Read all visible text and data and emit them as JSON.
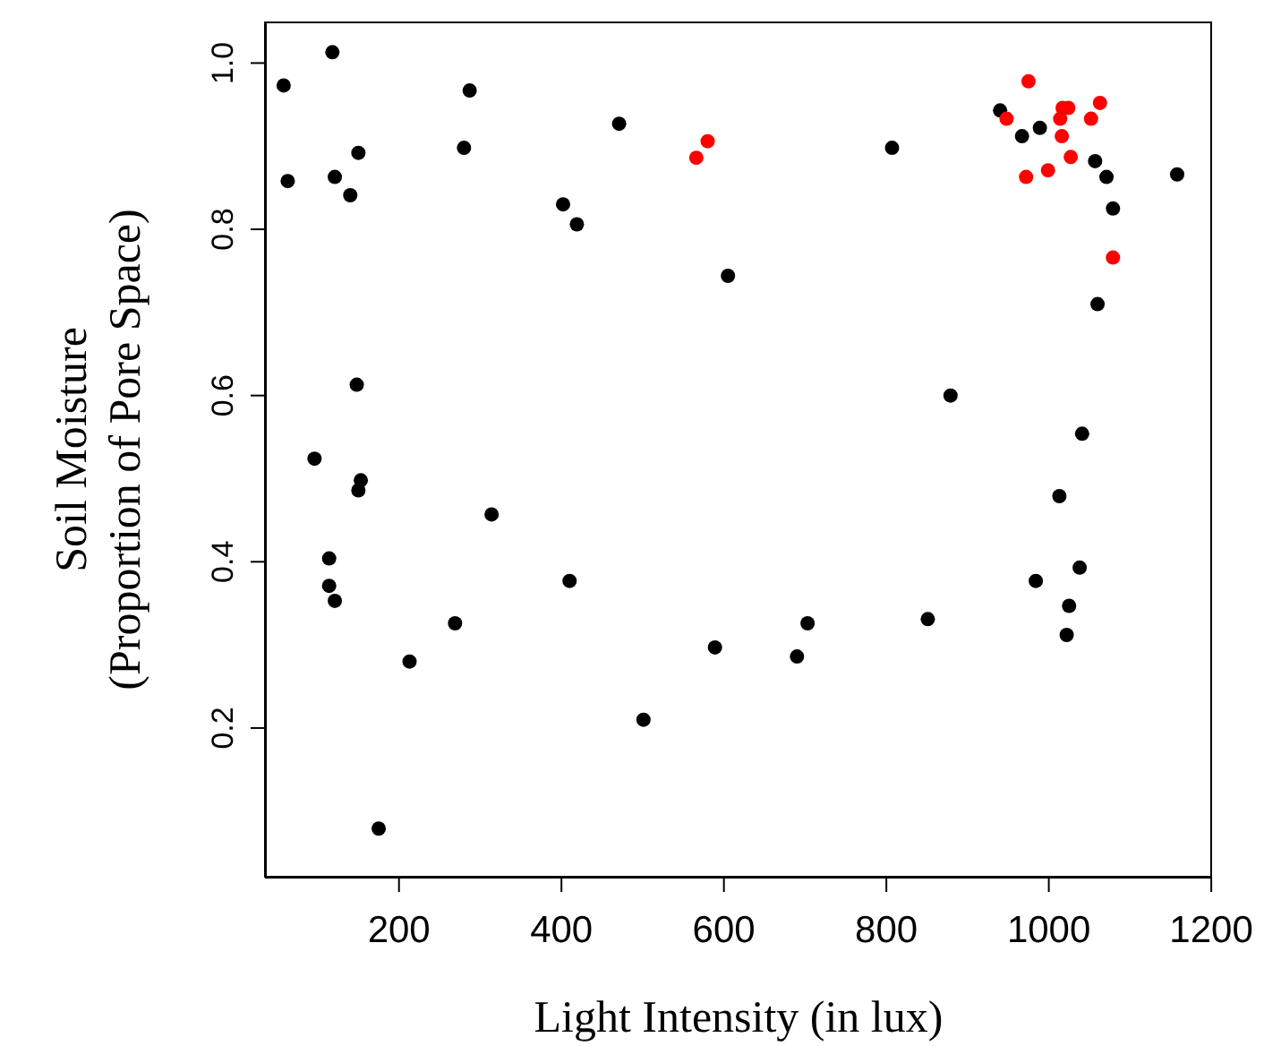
{
  "chart_data": {
    "type": "scatter",
    "xlabel": "Light Intensity (in lux)",
    "ylabel": "Soil Moisture\n(Proportion of Pore Space)",
    "xlim": [
      35,
      1201
    ],
    "ylim": [
      0.02,
      1.05
    ],
    "xticks": [
      200,
      400,
      600,
      800,
      1000,
      1200
    ],
    "yticks": [
      0.2,
      0.4,
      0.6,
      0.8,
      {
        "value": 1.0,
        "label": "1.0"
      }
    ],
    "marker": "circle",
    "grid": false,
    "legend": false,
    "series": [
      {
        "color": "#000000",
        "x": [
          118,
          58,
          287,
          471,
          150,
          280,
          63,
          121,
          140,
          402,
          419,
          605,
          148,
          96,
          153,
          150,
          314,
          114,
          410,
          114,
          121,
          269,
          213,
          589,
          501,
          175,
          940,
          967,
          989,
          1057,
          1071,
          1158,
          1079,
          807,
          1060,
          879,
          1041,
          1013,
          1038,
          984,
          1025,
          1022,
          851,
          703,
          690
        ],
        "values": [
          1.013,
          0.973,
          0.967,
          0.927,
          0.892,
          0.898,
          0.858,
          0.863,
          0.841,
          0.83,
          0.806,
          0.744,
          0.613,
          0.524,
          0.498,
          0.486,
          0.457,
          0.404,
          0.377,
          0.371,
          0.353,
          0.326,
          0.28,
          0.297,
          0.21,
          0.079,
          0.943,
          0.912,
          0.922,
          0.882,
          0.863,
          0.866,
          0.825,
          0.898,
          0.71,
          0.6,
          0.554,
          0.479,
          0.393,
          0.377,
          0.347,
          0.312,
          0.331,
          0.326,
          0.286
        ]
      },
      {
        "color": "#ff0000",
        "x": [
          580,
          566,
          975,
          948,
          1017,
          1024,
          1063,
          1014,
          1052,
          1016,
          1027,
          999,
          972,
          1079
        ],
        "values": [
          0.906,
          0.886,
          0.978,
          0.933,
          0.946,
          0.946,
          0.952,
          0.933,
          0.933,
          0.912,
          0.887,
          0.871,
          0.863,
          0.766
        ]
      }
    ]
  }
}
